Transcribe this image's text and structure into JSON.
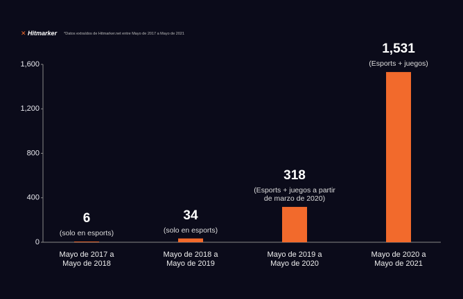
{
  "brand": "Hitmarker",
  "source_note": "*Datos extraídos de Hitmarker.net entre Mayo de 2017 a Mayo de 2021",
  "chart_data": {
    "type": "bar",
    "categories": [
      "Mayo de 2017 a\nMayo de 2018",
      "Mayo de 2018 a\nMayo de 2019",
      "Mayo de 2019 a\nMayo de 2020",
      "Mayo de 2020 a\nMayo de 2021"
    ],
    "values": [
      6,
      34,
      318,
      1531
    ],
    "value_labels": [
      "6",
      "34",
      "318",
      "1,531"
    ],
    "notes": [
      "(solo en esports)",
      "(solo en esports)",
      "(Esports + juegos a partir\nde marzo de 2020)",
      "(Esports + juegos)"
    ],
    "color": "#f26a2c",
    "ylim": [
      0,
      1600
    ],
    "yticks": [
      0,
      400,
      800,
      {
        "value": 1200,
        "label": "1,200"
      },
      {
        "value": 1600,
        "label": "1,600"
      }
    ]
  }
}
